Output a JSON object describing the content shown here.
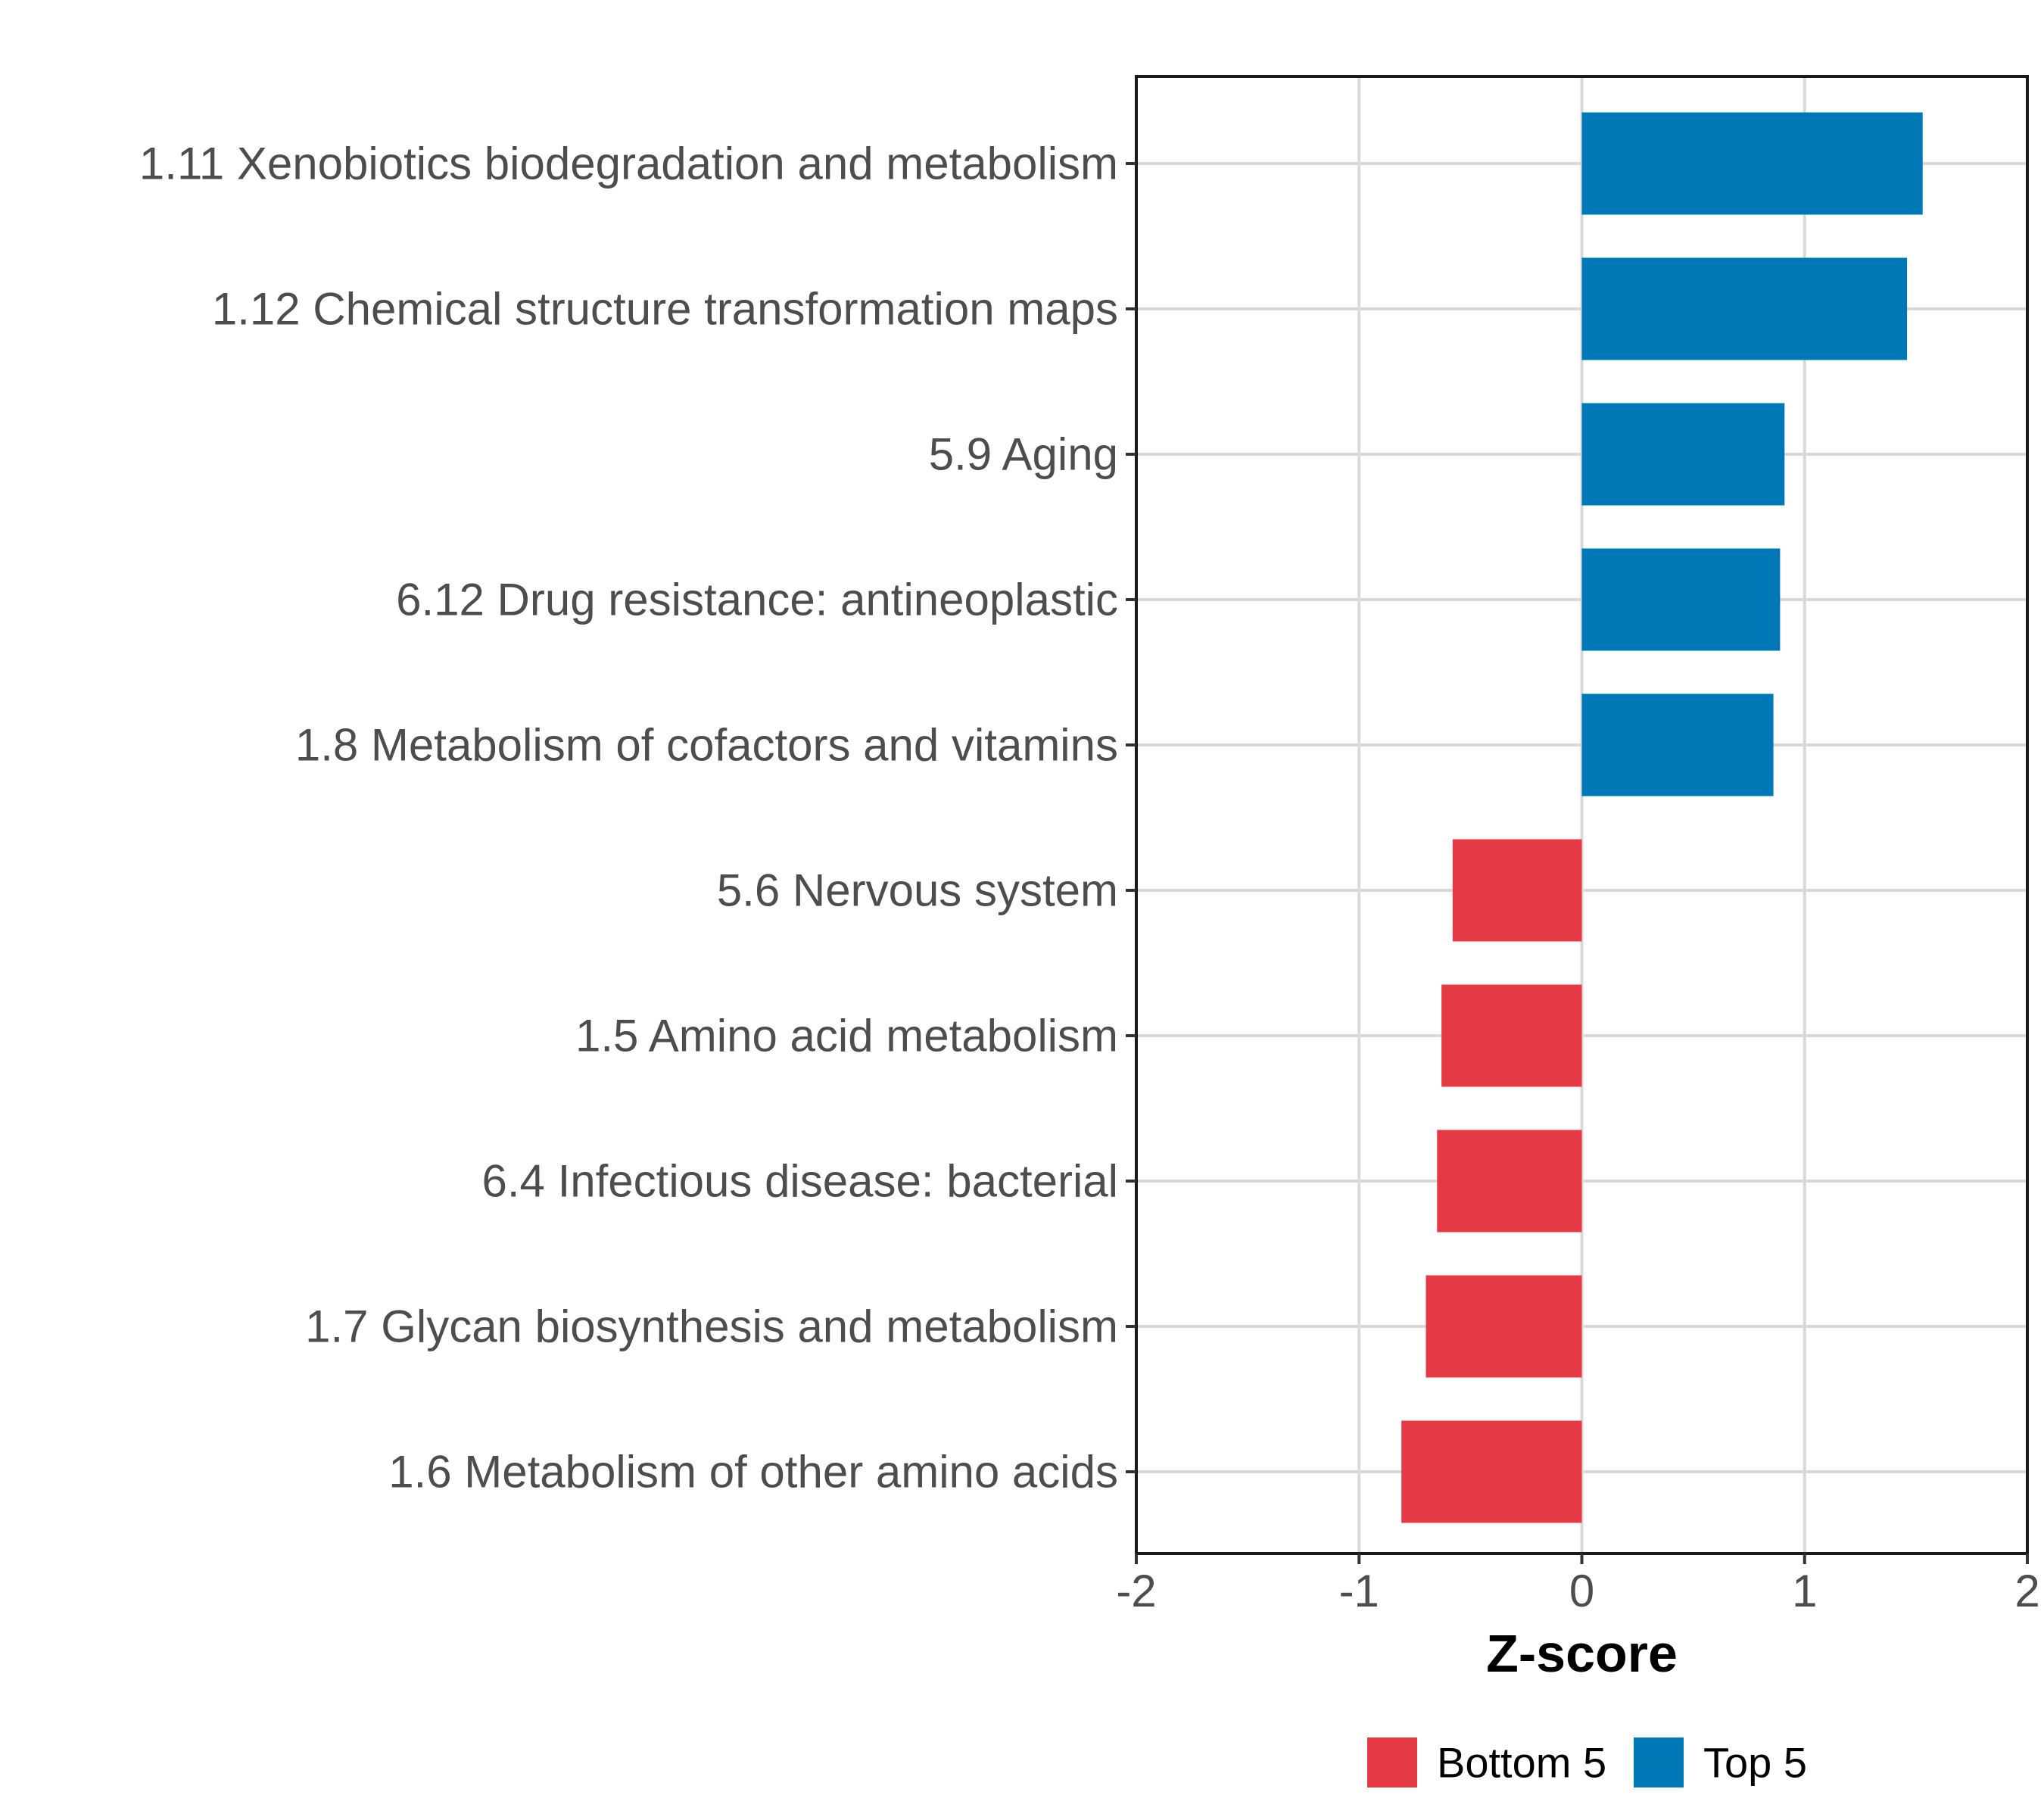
{
  "chart_data": {
    "type": "bar",
    "orientation": "horizontal",
    "categories": [
      "1.11 Xenobiotics biodegradation and metabolism",
      "1.12 Chemical structure transformation maps",
      "5.9 Aging",
      "6.12 Drug resistance: antineoplastic",
      "1.8 Metabolism of cofactors and vitamins",
      "5.6 Nervous system",
      "1.5 Amino acid metabolism",
      "6.4 Infectious disease: bacterial",
      "1.7 Glycan biosynthesis and metabolism",
      "1.6 Metabolism of other amino acids"
    ],
    "values": [
      1.53,
      1.46,
      0.91,
      0.89,
      0.86,
      -0.58,
      -0.63,
      -0.65,
      -0.7,
      -0.81
    ],
    "groups": [
      "Top 5",
      "Top 5",
      "Top 5",
      "Top 5",
      "Top 5",
      "Bottom 5",
      "Bottom 5",
      "Bottom 5",
      "Bottom 5",
      "Bottom 5"
    ],
    "xlabel": "Z-score",
    "ylabel": "",
    "xlim": [
      -2,
      2
    ],
    "xticks": [
      "-2",
      "-1",
      "0",
      "1",
      "2"
    ],
    "grid": true,
    "legend": {
      "position": "bottom",
      "items": [
        {
          "label": "Bottom 5",
          "color": "#E63946"
        },
        {
          "label": "Top 5",
          "color": "#0077B6"
        }
      ]
    },
    "colors": {
      "Top 5": "#0077B6",
      "Bottom 5": "#E63946"
    }
  }
}
